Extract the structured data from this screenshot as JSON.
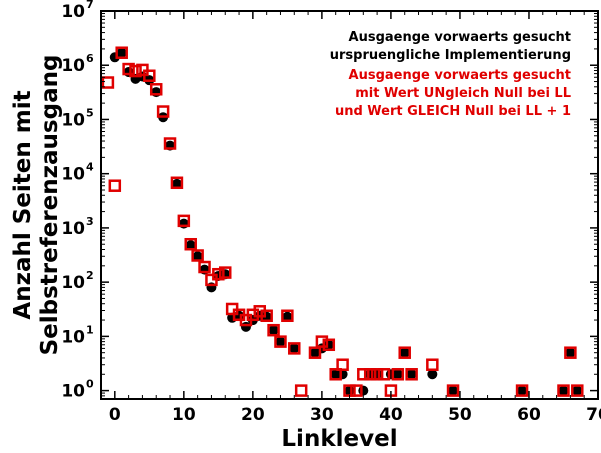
{
  "chart_data": {
    "type": "scatter",
    "xlabel": "Linklevel",
    "ylabel": [
      "Anzahl Seiten mit",
      "Selbstreferenzausgang"
    ],
    "xlim": [
      -2,
      70
    ],
    "ylim": [
      0.7,
      10000000
    ],
    "y_scale": "log",
    "x_ticks": [
      "0",
      "10",
      "20",
      "30",
      "40",
      "50",
      "60",
      "70"
    ],
    "y_ticks": [
      {
        "base": "10",
        "exp": "0"
      },
      {
        "base": "10",
        "exp": "1"
      },
      {
        "base": "10",
        "exp": "2"
      },
      {
        "base": "10",
        "exp": "3"
      },
      {
        "base": "10",
        "exp": "4"
      },
      {
        "base": "10",
        "exp": "5"
      },
      {
        "base": "10",
        "exp": "6"
      },
      {
        "base": "10",
        "exp": "7"
      }
    ],
    "grid": false,
    "legend_position": "top-right",
    "series": [
      {
        "name": "Ausgaenge vorwaerts gesucht urspruengliche Implementierung",
        "legend_lines": [
          "Ausgaenge vorwaerts gesucht",
          "urspruengliche Implementierung"
        ],
        "marker": "filled-circle",
        "color": "#000000",
        "points": [
          [
            0,
            1400000
          ],
          [
            1,
            1700000
          ],
          [
            2,
            750000
          ],
          [
            3,
            560000
          ],
          [
            4,
            620000
          ],
          [
            5,
            530000
          ],
          [
            6,
            320000
          ],
          [
            7,
            110000
          ],
          [
            8,
            33000
          ],
          [
            9,
            6500
          ],
          [
            10,
            1200
          ],
          [
            11,
            480
          ],
          [
            12,
            300
          ],
          [
            13,
            170
          ],
          [
            14,
            80
          ],
          [
            15,
            130
          ],
          [
            16,
            140
          ],
          [
            17,
            22
          ],
          [
            18,
            24
          ],
          [
            19,
            15
          ],
          [
            20,
            20
          ],
          [
            21,
            24
          ],
          [
            22,
            23
          ],
          [
            23,
            13
          ],
          [
            24,
            8
          ],
          [
            25,
            23
          ],
          [
            26,
            6
          ],
          [
            29,
            5
          ],
          [
            30,
            6
          ],
          [
            31,
            7
          ],
          [
            32,
            2
          ],
          [
            33,
            2
          ],
          [
            34,
            1
          ],
          [
            36,
            1
          ],
          [
            37,
            2
          ],
          [
            38,
            2
          ],
          [
            40,
            2
          ],
          [
            41,
            2
          ],
          [
            42,
            5
          ],
          [
            43,
            2
          ],
          [
            46,
            2
          ],
          [
            49,
            1
          ],
          [
            59,
            1
          ],
          [
            65,
            1
          ],
          [
            66,
            5
          ],
          [
            67,
            1
          ]
        ]
      },
      {
        "name": "Ausgaenge vorwaerts gesucht mit Wert UNgleich Null bei LL und Wert GLEICH Null bei LL + 1",
        "legend_lines": [
          "Ausgaenge vorwaerts gesucht",
          "mit Wert UNgleich Null bei LL",
          "und Wert GLEICH Null bei LL + 1"
        ],
        "marker": "open-square",
        "color": "#e00000",
        "points": [
          [
            -1,
            480000
          ],
          [
            0,
            6000
          ],
          [
            1,
            1700000
          ],
          [
            2,
            850000
          ],
          [
            3,
            780000
          ],
          [
            4,
            820000
          ],
          [
            5,
            640000
          ],
          [
            6,
            360000
          ],
          [
            7,
            140000
          ],
          [
            8,
            36000
          ],
          [
            9,
            6800
          ],
          [
            10,
            1350
          ],
          [
            11,
            500
          ],
          [
            12,
            310
          ],
          [
            13,
            190
          ],
          [
            14,
            110
          ],
          [
            15,
            140
          ],
          [
            16,
            150
          ],
          [
            17,
            32
          ],
          [
            18,
            25
          ],
          [
            19,
            20
          ],
          [
            20,
            25
          ],
          [
            21,
            29
          ],
          [
            22,
            24
          ],
          [
            23,
            13
          ],
          [
            24,
            8
          ],
          [
            25,
            24
          ],
          [
            26,
            6
          ],
          [
            27,
            1
          ],
          [
            29,
            5
          ],
          [
            30,
            8
          ],
          [
            31,
            7
          ],
          [
            32,
            2
          ],
          [
            33,
            3
          ],
          [
            34,
            1
          ],
          [
            35,
            1
          ],
          [
            36,
            2
          ],
          [
            37,
            2
          ],
          [
            38,
            2
          ],
          [
            39,
            2
          ],
          [
            40,
            1
          ],
          [
            41,
            2
          ],
          [
            42,
            5
          ],
          [
            43,
            2
          ],
          [
            46,
            3
          ],
          [
            49,
            1
          ],
          [
            59,
            1
          ],
          [
            65,
            1
          ],
          [
            66,
            5
          ],
          [
            67,
            1
          ]
        ]
      }
    ]
  }
}
